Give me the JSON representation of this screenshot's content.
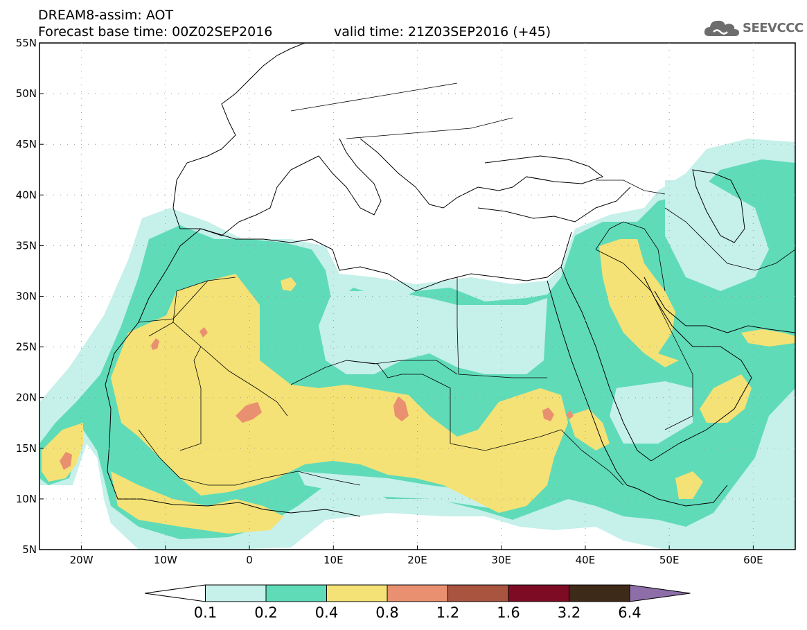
{
  "header": {
    "title_line1": "DREAM8-assim: AOT",
    "title_line2": "Forecast base time: 00Z02SEP2016",
    "valid_time": "valid time: 21Z03SEP2016 (+45)"
  },
  "logo": {
    "text": "SEEVCCC",
    "icon": "cloud-logo-icon"
  },
  "map": {
    "lat_range": [
      5,
      55
    ],
    "lon_range": [
      -25,
      65
    ],
    "lat_labels": [
      "55N",
      "50N",
      "45N",
      "40N",
      "35N",
      "30N",
      "25N",
      "20N",
      "15N",
      "10N",
      "5N"
    ],
    "lon_labels": [
      "20W",
      "10W",
      "0",
      "10E",
      "20E",
      "30E",
      "40E",
      "50E",
      "60E"
    ],
    "colors": {
      "aot_01_02": "#c6f0ea",
      "aot_02_04": "#5fdbb8",
      "aot_04_08": "#f4e276",
      "aot_08_12": "#e99070",
      "aot_12_16": "#a9543f",
      "aot_16_32": "#7d0b24",
      "aot_32_64": "#3e2a18",
      "aot_gt_64": "#8d6ea8"
    }
  },
  "colorbar": {
    "labels": [
      "0.1",
      "0.2",
      "0.4",
      "0.8",
      "1.2",
      "1.6",
      "3.2",
      "6.4"
    ],
    "colors": [
      "#ffffff",
      "#c6f0ea",
      "#5fdbb8",
      "#f4e276",
      "#e99070",
      "#a9543f",
      "#7d0b24",
      "#3e2a18",
      "#8d6ea8"
    ]
  }
}
